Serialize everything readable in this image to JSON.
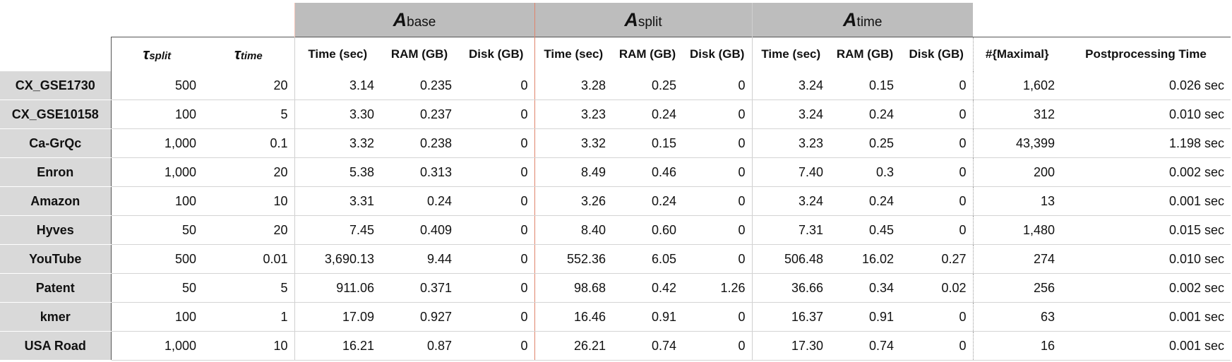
{
  "groups": {
    "base": {
      "letter": "A",
      "sub": "base"
    },
    "split": {
      "letter": "A",
      "sub": "split"
    },
    "time": {
      "letter": "A",
      "sub": "time"
    }
  },
  "headers": {
    "tau_split": {
      "sym": "τ",
      "sub": "split"
    },
    "tau_time": {
      "sym": "τ",
      "sub": "time"
    },
    "time_sec": "Time (sec)",
    "ram_gb": "RAM (GB)",
    "disk_gb": "Disk (GB)",
    "maximal": "#{Maximal}",
    "postprocessing": "Postprocessing Time"
  },
  "rows": [
    {
      "name": "CX_GSE1730",
      "tau_split": "500",
      "tau_time": "20",
      "base": [
        "3.14",
        "0.235",
        "0"
      ],
      "split": [
        "3.28",
        "0.25",
        "0"
      ],
      "time": [
        "3.24",
        "0.15",
        "0"
      ],
      "maximal": "1,602",
      "post": "0.026 sec"
    },
    {
      "name": "CX_GSE10158",
      "tau_split": "100",
      "tau_time": "5",
      "base": [
        "3.30",
        "0.237",
        "0"
      ],
      "split": [
        "3.23",
        "0.24",
        "0"
      ],
      "time": [
        "3.24",
        "0.24",
        "0"
      ],
      "maximal": "312",
      "post": "0.010 sec"
    },
    {
      "name": "Ca-GrQc",
      "tau_split": "1,000",
      "tau_time": "0.1",
      "base": [
        "3.32",
        "0.238",
        "0"
      ],
      "split": [
        "3.32",
        "0.15",
        "0"
      ],
      "time": [
        "3.23",
        "0.25",
        "0"
      ],
      "maximal": "43,399",
      "post": "1.198 sec"
    },
    {
      "name": "Enron",
      "tau_split": "1,000",
      "tau_time": "20",
      "base": [
        "5.38",
        "0.313",
        "0"
      ],
      "split": [
        "8.49",
        "0.46",
        "0"
      ],
      "time": [
        "7.40",
        "0.3",
        "0"
      ],
      "maximal": "200",
      "post": "0.002 sec"
    },
    {
      "name": "Amazon",
      "tau_split": "100",
      "tau_time": "10",
      "base": [
        "3.31",
        "0.24",
        "0"
      ],
      "split": [
        "3.26",
        "0.24",
        "0"
      ],
      "time": [
        "3.24",
        "0.24",
        "0"
      ],
      "maximal": "13",
      "post": "0.001 sec"
    },
    {
      "name": "Hyves",
      "tau_split": "50",
      "tau_time": "20",
      "base": [
        "7.45",
        "0.409",
        "0"
      ],
      "split": [
        "8.40",
        "0.60",
        "0"
      ],
      "time": [
        "7.31",
        "0.45",
        "0"
      ],
      "maximal": "1,480",
      "post": "0.015 sec"
    },
    {
      "name": "YouTube",
      "tau_split": "500",
      "tau_time": "0.01",
      "base": [
        "3,690.13",
        "9.44",
        "0"
      ],
      "split": [
        "552.36",
        "6.05",
        "0"
      ],
      "time": [
        "506.48",
        "16.02",
        "0.27"
      ],
      "maximal": "274",
      "post": "0.010 sec"
    },
    {
      "name": "Patent",
      "tau_split": "50",
      "tau_time": "5",
      "base": [
        "911.06",
        "0.371",
        "0"
      ],
      "split": [
        "98.68",
        "0.42",
        "1.26"
      ],
      "time": [
        "36.66",
        "0.34",
        "0.02"
      ],
      "maximal": "256",
      "post": "0.002 sec"
    },
    {
      "name": "kmer",
      "tau_split": "100",
      "tau_time": "1",
      "base": [
        "17.09",
        "0.927",
        "0"
      ],
      "split": [
        "16.46",
        "0.91",
        "0"
      ],
      "time": [
        "16.37",
        "0.91",
        "0"
      ],
      "maximal": "63",
      "post": "0.001 sec"
    },
    {
      "name": "USA Road",
      "tau_split": "1,000",
      "tau_time": "10",
      "base": [
        "16.21",
        "0.87",
        "0"
      ],
      "split": [
        "26.21",
        "0.74",
        "0"
      ],
      "time": [
        "17.30",
        "0.74",
        "0"
      ],
      "maximal": "16",
      "post": "0.001 sec"
    }
  ]
}
